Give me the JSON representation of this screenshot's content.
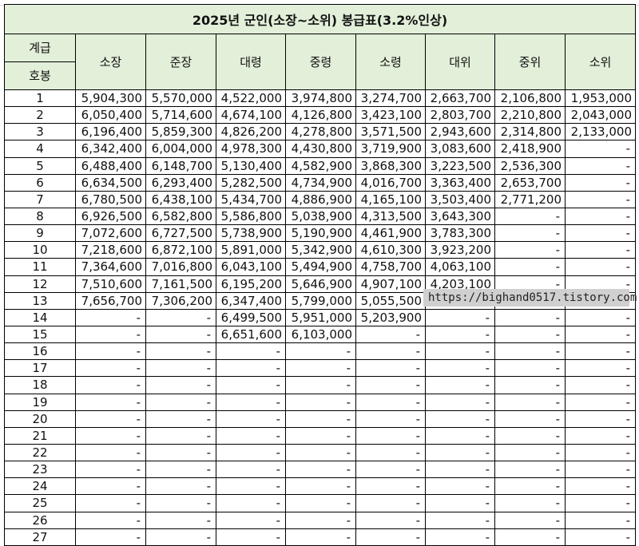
{
  "table": {
    "title": "2025년 군인(소장~소위) 봉급표(3.2%인상)",
    "header_left_top": "계급",
    "header_left_bottom": "호봉",
    "ranks": [
      "소장",
      "준장",
      "대령",
      "중령",
      "소령",
      "대위",
      "중위",
      "소위"
    ],
    "rows": [
      {
        "step": "1",
        "values": [
          "5,904,300",
          "5,570,000",
          "4,522,000",
          "3,974,800",
          "3,274,700",
          "2,663,700",
          "2,106,800",
          "1,953,000"
        ]
      },
      {
        "step": "2",
        "values": [
          "6,050,400",
          "5,714,600",
          "4,674,100",
          "4,126,800",
          "3,423,100",
          "2,803,700",
          "2,210,800",
          "2,043,000"
        ]
      },
      {
        "step": "3",
        "values": [
          "6,196,400",
          "5,859,300",
          "4,826,200",
          "4,278,800",
          "3,571,500",
          "2,943,600",
          "2,314,800",
          "2,133,000"
        ]
      },
      {
        "step": "4",
        "values": [
          "6,342,400",
          "6,004,000",
          "4,978,300",
          "4,430,800",
          "3,719,900",
          "3,083,600",
          "2,418,900",
          "-"
        ]
      },
      {
        "step": "5",
        "values": [
          "6,488,400",
          "6,148,700",
          "5,130,400",
          "4,582,900",
          "3,868,300",
          "3,223,500",
          "2,536,300",
          "-"
        ]
      },
      {
        "step": "6",
        "values": [
          "6,634,500",
          "6,293,400",
          "5,282,500",
          "4,734,900",
          "4,016,700",
          "3,363,400",
          "2,653,700",
          "-"
        ]
      },
      {
        "step": "7",
        "values": [
          "6,780,500",
          "6,438,100",
          "5,434,700",
          "4,886,900",
          "4,165,100",
          "3,503,400",
          "2,771,200",
          "-"
        ]
      },
      {
        "step": "8",
        "values": [
          "6,926,500",
          "6,582,800",
          "5,586,800",
          "5,038,900",
          "4,313,500",
          "3,643,300",
          "-",
          "-"
        ]
      },
      {
        "step": "9",
        "values": [
          "7,072,600",
          "6,727,500",
          "5,738,900",
          "5,190,900",
          "4,461,900",
          "3,783,300",
          "-",
          "-"
        ]
      },
      {
        "step": "10",
        "values": [
          "7,218,600",
          "6,872,100",
          "5,891,000",
          "5,342,900",
          "4,610,300",
          "3,923,200",
          "-",
          "-"
        ]
      },
      {
        "step": "11",
        "values": [
          "7,364,600",
          "7,016,800",
          "6,043,100",
          "5,494,900",
          "4,758,700",
          "4,063,100",
          "-",
          "-"
        ]
      },
      {
        "step": "12",
        "values": [
          "7,510,600",
          "7,161,500",
          "6,195,200",
          "5,646,900",
          "4,907,100",
          "4,203,100",
          "-",
          "-"
        ]
      },
      {
        "step": "13",
        "values": [
          "7,656,700",
          "7,306,200",
          "6,347,400",
          "5,799,000",
          "5,055,500",
          "-",
          "-",
          "-"
        ]
      },
      {
        "step": "14",
        "values": [
          "-",
          "-",
          "6,499,500",
          "5,951,000",
          "5,203,900",
          "-",
          "-",
          "-"
        ]
      },
      {
        "step": "15",
        "values": [
          "-",
          "-",
          "6,651,600",
          "6,103,000",
          "-",
          "-",
          "-",
          "-"
        ]
      },
      {
        "step": "16",
        "values": [
          "-",
          "-",
          "-",
          "-",
          "-",
          "-",
          "-",
          "-"
        ]
      },
      {
        "step": "17",
        "values": [
          "-",
          "-",
          "-",
          "-",
          "-",
          "-",
          "-",
          "-"
        ]
      },
      {
        "step": "18",
        "values": [
          "-",
          "-",
          "-",
          "-",
          "-",
          "-",
          "-",
          "-"
        ]
      },
      {
        "step": "19",
        "values": [
          "-",
          "-",
          "-",
          "-",
          "-",
          "-",
          "-",
          "-"
        ]
      },
      {
        "step": "20",
        "values": [
          "-",
          "-",
          "-",
          "-",
          "-",
          "-",
          "-",
          "-"
        ]
      },
      {
        "step": "21",
        "values": [
          "-",
          "-",
          "-",
          "-",
          "-",
          "-",
          "-",
          "-"
        ]
      },
      {
        "step": "22",
        "values": [
          "-",
          "-",
          "-",
          "-",
          "-",
          "-",
          "-",
          "-"
        ]
      },
      {
        "step": "23",
        "values": [
          "-",
          "-",
          "-",
          "-",
          "-",
          "-",
          "-",
          "-"
        ]
      },
      {
        "step": "24",
        "values": [
          "-",
          "-",
          "-",
          "-",
          "-",
          "-",
          "-",
          "-"
        ]
      },
      {
        "step": "25",
        "values": [
          "-",
          "-",
          "-",
          "-",
          "-",
          "-",
          "-",
          "-"
        ]
      },
      {
        "step": "26",
        "values": [
          "-",
          "-",
          "-",
          "-",
          "-",
          "-",
          "-",
          "-"
        ]
      },
      {
        "step": "27",
        "values": [
          "-",
          "-",
          "-",
          "-",
          "-",
          "-",
          "-",
          "-"
        ]
      }
    ]
  },
  "watermark": "https://bighand0517.tistory.com"
}
